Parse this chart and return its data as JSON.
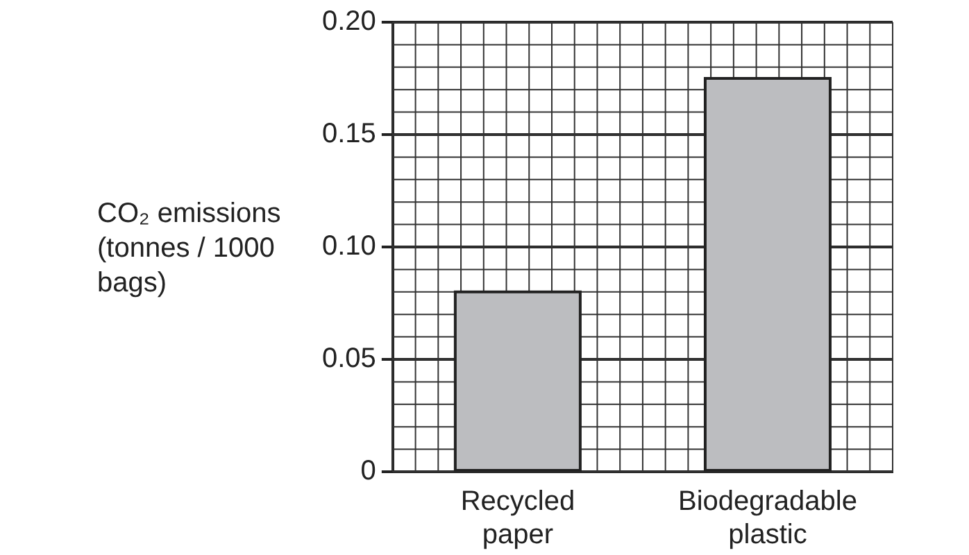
{
  "chart_data": {
    "type": "bar",
    "ylabel": "CO₂ emissions (tonnes / 1000 bags)",
    "categories": [
      "Recycled paper",
      "Biodegradable plastic"
    ],
    "values": [
      0.08,
      0.175
    ],
    "color": "#bcbdc0",
    "ylim": [
      0,
      0.2
    ],
    "yticks": [
      0,
      0.05,
      {
        "value": 0.1,
        "label": "0.10"
      },
      0.15,
      {
        "value": 0.2,
        "label": "0.20"
      }
    ],
    "grid": true
  }
}
